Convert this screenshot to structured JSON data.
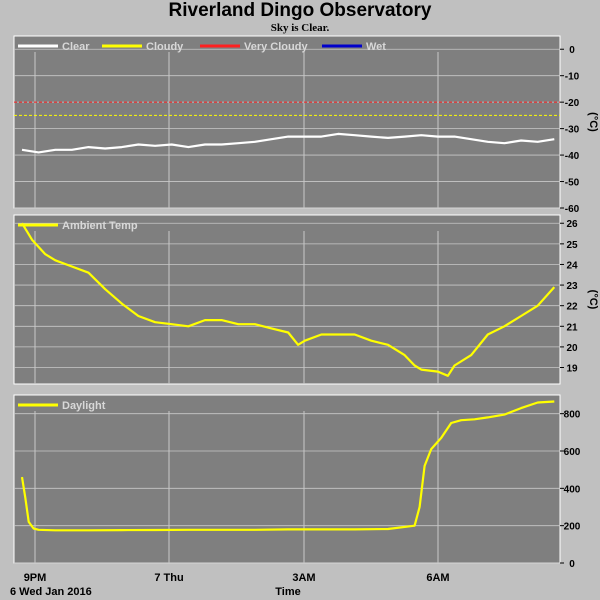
{
  "title": "Riverland Dingo Observatory",
  "subtitle": "Sky is Clear.",
  "colors": {
    "plot_bg": "#7f7f7f",
    "grid": "#c8c8c8",
    "series_white": "#ffffff",
    "series_yellow": "#ffff00",
    "series_red": "#ff2020",
    "series_blue": "#0000cc",
    "legend_text": "#d8d8d8"
  },
  "x_axis": {
    "title": "Time",
    "date_label": "6 Wed Jan 2016",
    "ticks": [
      "9PM",
      "7 Thu",
      "3AM",
      "6AM"
    ]
  },
  "chart_data": [
    {
      "type": "line",
      "name": "sky-temperature",
      "x_unit": "hours since 20:30",
      "xlim": [
        0,
        16.05
      ],
      "ylim": [
        -60,
        5
      ],
      "yticks": [
        0,
        -10,
        -20,
        -30,
        -40,
        -50,
        -60
      ],
      "ylabel": "(°C)",
      "thresholds": [
        {
          "name": "Very Cloudy",
          "value": -20,
          "color": "#ff2020"
        },
        {
          "name": "Cloudy",
          "value": -25,
          "color": "#ffff00"
        }
      ],
      "legend": [
        "Clear",
        "Cloudy",
        "Very Cloudy",
        "Wet"
      ],
      "series": [
        {
          "name": "Clear",
          "x": [
            0,
            0.5,
            1,
            1.5,
            2,
            2.5,
            3,
            3.5,
            4,
            4.5,
            5,
            5.5,
            6,
            6.5,
            7,
            7.5,
            8,
            8.5,
            9,
            9.5,
            10,
            10.5,
            11,
            11.5,
            12,
            12.5,
            13,
            13.5,
            14,
            14.5,
            15,
            15.5,
            16
          ],
          "y": [
            -38,
            -39,
            -38,
            -38,
            -37,
            -37.5,
            -37,
            -36,
            -36.5,
            -36,
            -37,
            -36,
            -36,
            -35.5,
            -35,
            -34,
            -33,
            -33,
            -33,
            -32,
            -32.5,
            -33,
            -33.5,
            -33,
            -32.5,
            -33,
            -33,
            -34,
            -35,
            -35.5,
            -34.5,
            -35,
            -34
          ]
        }
      ]
    },
    {
      "type": "line",
      "name": "ambient-temperature",
      "x_unit": "hours since 20:30",
      "xlim": [
        0,
        16.05
      ],
      "ylim": [
        18.2,
        26.4
      ],
      "yticks": [
        19,
        20,
        21,
        22,
        23,
        24,
        25,
        26
      ],
      "ylabel": "(°C)",
      "legend": [
        "Ambient Temp"
      ],
      "series": [
        {
          "name": "Ambient Temp",
          "x": [
            0,
            0.3,
            0.7,
            1,
            1.5,
            2,
            2.5,
            3,
            3.5,
            4,
            4.5,
            5,
            5.5,
            6,
            6.5,
            7,
            7.5,
            8,
            8.3,
            8.5,
            9,
            9.5,
            10,
            10.5,
            11,
            11.5,
            11.8,
            12,
            12.5,
            12.8,
            13,
            13.5,
            14,
            14.5,
            15,
            15.5,
            16
          ],
          "y": [
            26,
            25.2,
            24.5,
            24.2,
            23.9,
            23.6,
            22.8,
            22.1,
            21.5,
            21.2,
            21.1,
            21,
            21.3,
            21.3,
            21.1,
            21.1,
            20.9,
            20.7,
            20.1,
            20.3,
            20.6,
            20.6,
            20.6,
            20.3,
            20.1,
            19.6,
            19.1,
            18.9,
            18.8,
            18.6,
            19.1,
            19.6,
            20.6,
            21,
            21.5,
            22,
            22.9
          ]
        }
      ]
    },
    {
      "type": "line",
      "name": "daylight",
      "x_unit": "hours since 20:30",
      "xlim": [
        0,
        16.05
      ],
      "ylim": [
        0,
        900
      ],
      "yticks": [
        0,
        200,
        400,
        600,
        800
      ],
      "ylabel": "",
      "legend": [
        "Daylight"
      ],
      "series": [
        {
          "name": "Daylight",
          "x": [
            0,
            0.1,
            0.2,
            0.35,
            0.5,
            1,
            2,
            3,
            4,
            5,
            6,
            7,
            8,
            9,
            10,
            11,
            11.8,
            11.95,
            12.1,
            12.3,
            12.6,
            12.9,
            13.2,
            13.6,
            14,
            14.5,
            15,
            15.5,
            16
          ],
          "y": [
            460,
            350,
            220,
            185,
            178,
            175,
            175,
            176,
            177,
            178,
            178,
            178,
            180,
            180,
            180,
            182,
            200,
            300,
            520,
            610,
            670,
            750,
            765,
            770,
            780,
            795,
            830,
            860,
            865
          ]
        }
      ]
    }
  ]
}
